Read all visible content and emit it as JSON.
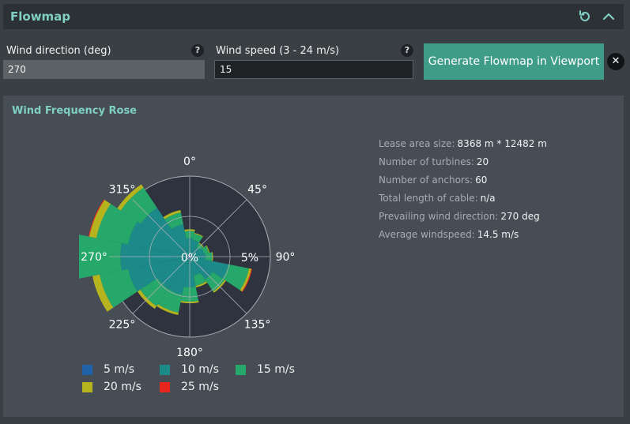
{
  "header": {
    "title": "Flowmap"
  },
  "wind_direction": {
    "label": "Wind direction (deg)",
    "value": "270",
    "help": "?"
  },
  "wind_speed": {
    "label": "Wind speed (3 - 24 m/s)",
    "value": "15",
    "help": "?"
  },
  "generate_button": {
    "label": "Generate Flowmap in Viewport"
  },
  "close_button": {
    "glyph": "✕"
  },
  "rose_panel": {
    "title": "Wind Frequency Rose",
    "center_label": "0%",
    "ring_label": "5%",
    "direction_labels": [
      "0°",
      "45°",
      "90°",
      "135°",
      "180°",
      "225°",
      "270°",
      "315°"
    ]
  },
  "info": [
    {
      "label": "Lease area size:",
      "value": "8368 m * 12482 m"
    },
    {
      "label": "Number of turbines:",
      "value": "20"
    },
    {
      "label": "Number of anchors:",
      "value": "60"
    },
    {
      "label": "Total length of cable:",
      "value": "n/a"
    },
    {
      "label": "Prevailing wind direction:",
      "value": "270 deg"
    },
    {
      "label": "Average windspeed:",
      "value": "14.5 m/s"
    }
  ],
  "legend": [
    {
      "label": "5 m/s",
      "color": "#1f62a8"
    },
    {
      "label": "10 m/s",
      "color": "#1d8a8a"
    },
    {
      "label": "15 m/s",
      "color": "#27a86b"
    },
    {
      "label": "20 m/s",
      "color": "#b5b41f"
    },
    {
      "label": "25 m/s",
      "color": "#e8261e"
    }
  ],
  "chart_data": {
    "type": "barpolar",
    "title": "Wind Frequency Rose",
    "radial_axis": {
      "ticks": [
        "0%",
        "5%"
      ],
      "max": 10
    },
    "angular_labels": [
      "0°",
      "45°",
      "90°",
      "135°",
      "180°",
      "225°",
      "270°",
      "315°"
    ],
    "directions": [
      0,
      22.5,
      45,
      67.5,
      90,
      112.5,
      135,
      157.5,
      180,
      202.5,
      225,
      247.5,
      270,
      292.5,
      315,
      337.5
    ],
    "series": [
      {
        "name": "5 m/s",
        "color": "#1f62a8",
        "values": [
          0.3,
          0.3,
          0.2,
          0.2,
          0.2,
          0.2,
          0.2,
          0.2,
          0.3,
          0.3,
          0.3,
          0.3,
          0.4,
          0.3,
          0.3,
          0.3
        ]
      },
      {
        "name": "10 m/s",
        "color": "#1d8a8a",
        "values": [
          2.0,
          1.8,
          1.3,
          1.6,
          1.8,
          4.7,
          3.2,
          2.2,
          3.5,
          4.5,
          4.5,
          7.5,
          8.2,
          7.5,
          7.0,
          3.8
        ]
      },
      {
        "name": "15 m/s",
        "color": "#27a86b",
        "values": [
          0.9,
          0.8,
          0.5,
          0.6,
          0.8,
          2.6,
          1.8,
          1.3,
          1.8,
          2.3,
          2.6,
          3.6,
          5.5,
          4.0,
          3.0,
          1.5
        ]
      },
      {
        "name": "20 m/s",
        "color": "#b5b41f",
        "values": [
          0.2,
          0.1,
          0.1,
          0.1,
          0.1,
          0.3,
          0.2,
          0.2,
          0.2,
          0.3,
          0.4,
          0.9,
          1.2,
          0.9,
          0.5,
          0.3
        ]
      },
      {
        "name": "25 m/s",
        "color": "#e8261e",
        "values": [
          0,
          0,
          0,
          0,
          0,
          0.1,
          0,
          0,
          0,
          0,
          0,
          0,
          0.1,
          0.1,
          0,
          0
        ]
      }
    ]
  }
}
